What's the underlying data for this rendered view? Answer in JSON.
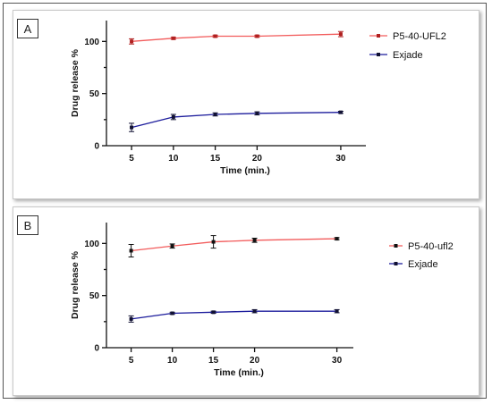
{
  "panels": [
    {
      "label": "A"
    },
    {
      "label": "B"
    }
  ],
  "chart_data": [
    {
      "type": "line",
      "panel_label": "A",
      "xlabel": "Time (min.)",
      "ylabel": "Drug release %",
      "x": [
        5,
        10,
        15,
        20,
        30
      ],
      "xticks": [
        5,
        10,
        15,
        20,
        30
      ],
      "ylim": [
        0,
        120
      ],
      "yticks": [
        0,
        50,
        100
      ],
      "legend_position": "right",
      "series": [
        {
          "name": "P5-40-UFL2",
          "color": "#f25c5c",
          "marker_color": "#b02020",
          "values": [
            100,
            103,
            105,
            105,
            107
          ],
          "errors": [
            2.5,
            1,
            1,
            1,
            2.5
          ]
        },
        {
          "name": "Exjade",
          "color": "#1c1c9c",
          "marker_color": "#111133",
          "values": [
            17.5,
            27.5,
            30,
            31,
            32
          ],
          "errors": [
            4,
            2.5,
            1.5,
            1.5,
            1
          ]
        }
      ]
    },
    {
      "type": "line",
      "panel_label": "B",
      "xlabel": "Time (min.)",
      "ylabel": "Drug release %",
      "x": [
        5,
        10,
        15,
        20,
        30
      ],
      "xticks": [
        5,
        10,
        15,
        20,
        30
      ],
      "ylim": [
        0,
        120
      ],
      "yticks": [
        0,
        50,
        100
      ],
      "legend_position": "right",
      "series": [
        {
          "name": "P5-40-ufl2",
          "color": "#f25c5c",
          "marker_color": "#111111",
          "values": [
            93,
            97.5,
            101.5,
            103,
            104.5
          ],
          "errors": [
            6,
            2,
            6,
            2,
            1
          ]
        },
        {
          "name": "Exjade",
          "color": "#1c1c9c",
          "marker_color": "#111133",
          "values": [
            27.5,
            33,
            34,
            35,
            35
          ],
          "errors": [
            3,
            1,
            1,
            1.5,
            1.5
          ]
        }
      ]
    }
  ]
}
